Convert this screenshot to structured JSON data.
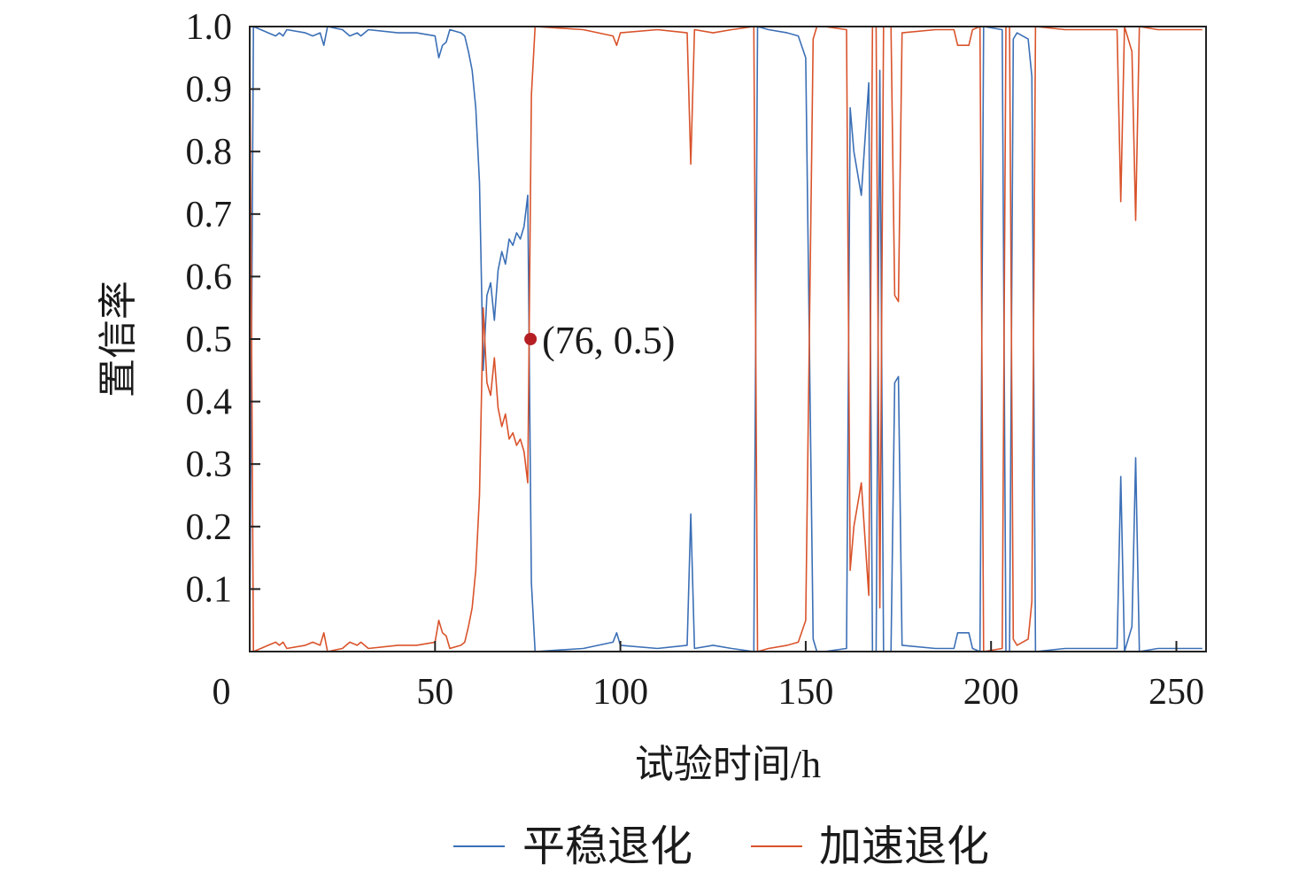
{
  "chart_data": {
    "type": "line",
    "xlabel": "试验时间/h",
    "ylabel": "置信率",
    "xlim": [
      0,
      258
    ],
    "ylim": [
      0,
      1.0
    ],
    "xticks": [
      0,
      50,
      100,
      150,
      200,
      250
    ],
    "xtick_labels": [
      "0",
      "50",
      "100",
      "150",
      "200",
      "250"
    ],
    "yticks": [
      0.1,
      0.2,
      0.3,
      0.4,
      0.5,
      0.6,
      0.7,
      0.8,
      0.9,
      1.0
    ],
    "ytick_labels": [
      "0.1",
      "0.2",
      "0.3",
      "0.4",
      "0.5",
      "0.6",
      "0.7",
      "0.8",
      "0.9",
      "1.0"
    ],
    "grid": false,
    "legend_position": "bottom",
    "x": [
      0,
      1,
      3,
      5,
      7,
      8,
      9,
      10,
      15,
      17,
      19,
      20,
      21,
      25,
      27,
      29,
      30,
      32,
      40,
      45,
      50,
      51,
      52,
      53,
      54,
      57,
      58,
      59,
      60,
      61,
      62,
      63,
      64,
      65,
      66,
      67,
      68,
      69,
      70,
      71,
      72,
      73,
      74,
      75,
      76,
      77,
      90,
      98,
      99,
      100,
      110,
      118,
      119,
      120,
      125,
      130,
      136,
      137,
      140,
      145,
      148,
      150,
      152,
      153,
      155,
      161,
      162,
      163,
      165,
      167,
      168,
      169,
      170,
      171,
      173,
      174,
      175,
      176,
      185,
      190,
      191,
      194,
      195,
      197,
      198,
      203,
      204,
      205,
      206,
      207,
      210,
      211,
      212,
      220,
      234,
      235,
      236,
      238,
      239,
      240,
      245,
      250,
      257
    ],
    "series": [
      {
        "name": "平稳退化",
        "color": "#3b6fb6",
        "values": [
          0,
          1.0,
          0.995,
          0.99,
          0.985,
          0.99,
          0.985,
          0.995,
          0.99,
          0.985,
          0.99,
          0.97,
          1.0,
          0.995,
          0.985,
          0.99,
          0.985,
          0.995,
          0.99,
          0.99,
          0.985,
          0.95,
          0.97,
          0.975,
          0.995,
          0.99,
          0.985,
          0.96,
          0.93,
          0.87,
          0.75,
          0.45,
          0.57,
          0.59,
          0.53,
          0.61,
          0.64,
          0.62,
          0.66,
          0.65,
          0.67,
          0.66,
          0.68,
          0.73,
          0.11,
          0.0,
          0.005,
          0.015,
          0.03,
          0.01,
          0.005,
          0.01,
          0.22,
          0.005,
          0.01,
          0.005,
          0.0,
          1.0,
          0.995,
          0.99,
          0.985,
          0.95,
          0.02,
          0.0,
          0.0,
          0.005,
          0.87,
          0.8,
          0.73,
          0.91,
          0.0,
          0.0,
          0.93,
          0.0,
          0.0,
          0.43,
          0.44,
          0.01,
          0.005,
          0.005,
          0.03,
          0.03,
          0.005,
          0.0,
          1.0,
          0.995,
          0.0,
          0.0,
          0.98,
          0.99,
          0.98,
          0.92,
          0.0,
          0.005,
          0.005,
          0.28,
          0.0,
          0.04,
          0.31,
          0.0,
          0.005,
          0.005,
          0.005
        ]
      },
      {
        "name": "加速退化",
        "color": "#d9532b",
        "values": [
          1.0,
          0.0,
          0.005,
          0.01,
          0.015,
          0.01,
          0.015,
          0.005,
          0.01,
          0.015,
          0.01,
          0.03,
          0.0,
          0.005,
          0.015,
          0.01,
          0.015,
          0.005,
          0.01,
          0.01,
          0.015,
          0.05,
          0.03,
          0.025,
          0.005,
          0.01,
          0.015,
          0.04,
          0.07,
          0.13,
          0.25,
          0.55,
          0.43,
          0.41,
          0.47,
          0.39,
          0.36,
          0.38,
          0.34,
          0.35,
          0.33,
          0.34,
          0.32,
          0.27,
          0.89,
          1.0,
          0.995,
          0.985,
          0.97,
          0.99,
          0.995,
          0.99,
          0.78,
          0.995,
          0.99,
          0.995,
          1.0,
          0.0,
          0.005,
          0.01,
          0.015,
          0.05,
          0.98,
          1.0,
          1.0,
          0.995,
          0.13,
          0.2,
          0.27,
          0.09,
          1.0,
          1.0,
          0.07,
          1.0,
          1.0,
          0.57,
          0.56,
          0.99,
          0.995,
          0.995,
          0.97,
          0.97,
          0.995,
          1.0,
          0.0,
          0.005,
          1.0,
          1.0,
          0.02,
          0.01,
          0.02,
          0.08,
          1.0,
          0.995,
          0.995,
          0.72,
          1.0,
          0.96,
          0.69,
          1.0,
          0.995,
          0.995,
          0.995
        ]
      }
    ],
    "annotations": [
      {
        "x": 76,
        "y": 0.5,
        "text": "(76, 0.5)",
        "color": "#b51f24"
      }
    ]
  }
}
